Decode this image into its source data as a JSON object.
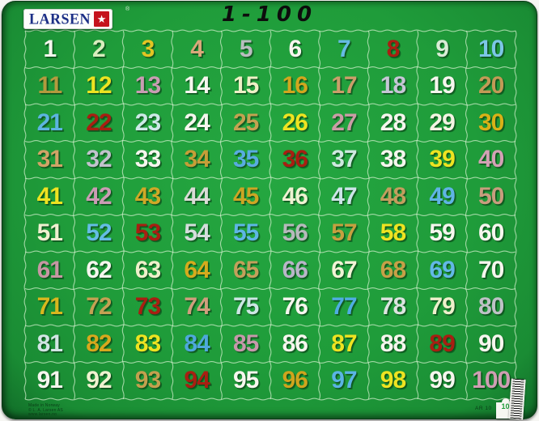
{
  "header": {
    "brand": "LARSEN",
    "registered_mark": "®",
    "star_icon_char": "★",
    "title": "1-100"
  },
  "colors": {
    "board_green": "#1f9c3a",
    "board_edge": "#0a3a16",
    "grid_line": "#dcf3d4",
    "brand_blue": "#1c2f86",
    "brand_red": "#c5131d",
    "title_black": "#0d0d0d",
    "accent_number_red": "#a81f12"
  },
  "grid": {
    "rows": 10,
    "cols": 10,
    "cells": [
      {
        "n": "1",
        "c": "#f6f6ee"
      },
      {
        "n": "2",
        "c": "#d9edbe"
      },
      {
        "n": "3",
        "c": "#e3c523"
      },
      {
        "n": "4",
        "c": "#d9a87a"
      },
      {
        "n": "5",
        "c": "#b9bdbf"
      },
      {
        "n": "6",
        "c": "#f6f6ee"
      },
      {
        "n": "7",
        "c": "#66bbe4"
      },
      {
        "n": "8",
        "c": "#a81f12"
      },
      {
        "n": "9",
        "c": "#d9ecd6"
      },
      {
        "n": "10",
        "c": "#7cc6e6"
      },
      {
        "n": "11",
        "c": "#b39a3e"
      },
      {
        "n": "12",
        "c": "#eee321"
      },
      {
        "n": "13",
        "c": "#c99db3"
      },
      {
        "n": "14",
        "c": "#f6f6ee"
      },
      {
        "n": "15",
        "c": "#eef0c6"
      },
      {
        "n": "16",
        "c": "#d2a61e"
      },
      {
        "n": "17",
        "c": "#cb9e6a"
      },
      {
        "n": "18",
        "c": "#c6c6d6"
      },
      {
        "n": "19",
        "c": "#f6f6ee"
      },
      {
        "n": "20",
        "c": "#c29a56"
      },
      {
        "n": "21",
        "c": "#5cb4e0"
      },
      {
        "n": "22",
        "c": "#a81f12"
      },
      {
        "n": "23",
        "c": "#cde9e7"
      },
      {
        "n": "24",
        "c": "#f6f6ee"
      },
      {
        "n": "25",
        "c": "#c3a251"
      },
      {
        "n": "26",
        "c": "#eee321"
      },
      {
        "n": "27",
        "c": "#cb9da6"
      },
      {
        "n": "28",
        "c": "#f6f6ee"
      },
      {
        "n": "29",
        "c": "#f3f4e2"
      },
      {
        "n": "30",
        "c": "#d8b117"
      },
      {
        "n": "31",
        "c": "#d1a467"
      },
      {
        "n": "32",
        "c": "#c2c2cd"
      },
      {
        "n": "33",
        "c": "#f6f6ee"
      },
      {
        "n": "34",
        "c": "#c59e38"
      },
      {
        "n": "35",
        "c": "#58ace0"
      },
      {
        "n": "36",
        "c": "#a81f12"
      },
      {
        "n": "37",
        "c": "#cfe9e0"
      },
      {
        "n": "38",
        "c": "#f6f6ee"
      },
      {
        "n": "39",
        "c": "#eee321"
      },
      {
        "n": "40",
        "c": "#d3a1b5"
      },
      {
        "n": "41",
        "c": "#eee321"
      },
      {
        "n": "42",
        "c": "#cb9cb4"
      },
      {
        "n": "43",
        "c": "#cfa827"
      },
      {
        "n": "44",
        "c": "#dbdcd6"
      },
      {
        "n": "45",
        "c": "#cda524"
      },
      {
        "n": "46",
        "c": "#eef2d2"
      },
      {
        "n": "47",
        "c": "#cce4e8"
      },
      {
        "n": "48",
        "c": "#c39e5e"
      },
      {
        "n": "49",
        "c": "#5fb4e4"
      },
      {
        "n": "50",
        "c": "#c89d7e"
      },
      {
        "n": "51",
        "c": "#eff0d0"
      },
      {
        "n": "52",
        "c": "#64bce4"
      },
      {
        "n": "53",
        "c": "#a81f12"
      },
      {
        "n": "54",
        "c": "#d5dddc"
      },
      {
        "n": "55",
        "c": "#5eb6e6"
      },
      {
        "n": "56",
        "c": "#b7b9bc"
      },
      {
        "n": "57",
        "c": "#c5a040"
      },
      {
        "n": "58",
        "c": "#eee321"
      },
      {
        "n": "59",
        "c": "#f6f6ee"
      },
      {
        "n": "60",
        "c": "#f6f6ee"
      },
      {
        "n": "61",
        "c": "#c697a3"
      },
      {
        "n": "62",
        "c": "#f6f6ee"
      },
      {
        "n": "63",
        "c": "#eef0ca"
      },
      {
        "n": "64",
        "c": "#d5ab1d"
      },
      {
        "n": "65",
        "c": "#c3a05b"
      },
      {
        "n": "66",
        "c": "#b9b5c8"
      },
      {
        "n": "67",
        "c": "#f2f4d6"
      },
      {
        "n": "68",
        "c": "#c6a047"
      },
      {
        "n": "69",
        "c": "#62b8e6"
      },
      {
        "n": "70",
        "c": "#f6f6ee"
      },
      {
        "n": "71",
        "c": "#d8b71e"
      },
      {
        "n": "72",
        "c": "#c4a153"
      },
      {
        "n": "73",
        "c": "#a81f12"
      },
      {
        "n": "74",
        "c": "#cf9e7d"
      },
      {
        "n": "75",
        "c": "#cde6e4"
      },
      {
        "n": "76",
        "c": "#f6f6ee"
      },
      {
        "n": "77",
        "c": "#4fade2"
      },
      {
        "n": "78",
        "c": "#dde4e0"
      },
      {
        "n": "79",
        "c": "#eef0cc"
      },
      {
        "n": "80",
        "c": "#bec2c6"
      },
      {
        "n": "81",
        "c": "#d2e5e4"
      },
      {
        "n": "82",
        "c": "#d7a81d"
      },
      {
        "n": "83",
        "c": "#eee321"
      },
      {
        "n": "84",
        "c": "#4ea8dc"
      },
      {
        "n": "85",
        "c": "#c798ab"
      },
      {
        "n": "86",
        "c": "#f6f6ee"
      },
      {
        "n": "87",
        "c": "#eee321"
      },
      {
        "n": "88",
        "c": "#f6f6ee"
      },
      {
        "n": "89",
        "c": "#a81f12"
      },
      {
        "n": "90",
        "c": "#f6f6ee"
      },
      {
        "n": "91",
        "c": "#f6f6ee"
      },
      {
        "n": "92",
        "c": "#f0f2d0"
      },
      {
        "n": "93",
        "c": "#c2a04e"
      },
      {
        "n": "94",
        "c": "#a81f12"
      },
      {
        "n": "95",
        "c": "#f6f6ee"
      },
      {
        "n": "96",
        "c": "#cfa41d"
      },
      {
        "n": "97",
        "c": "#5ab4e4"
      },
      {
        "n": "98",
        "c": "#eee321"
      },
      {
        "n": "99",
        "c": "#f6f6ee"
      },
      {
        "n": "100",
        "c": "#cf9eb3"
      }
    ]
  },
  "footer": {
    "smallprint": [
      "Made in Norway",
      "© L. A. Larsen AS",
      "www.larsen.no"
    ],
    "product_code": "AR 10",
    "piece_count_label": "100"
  }
}
